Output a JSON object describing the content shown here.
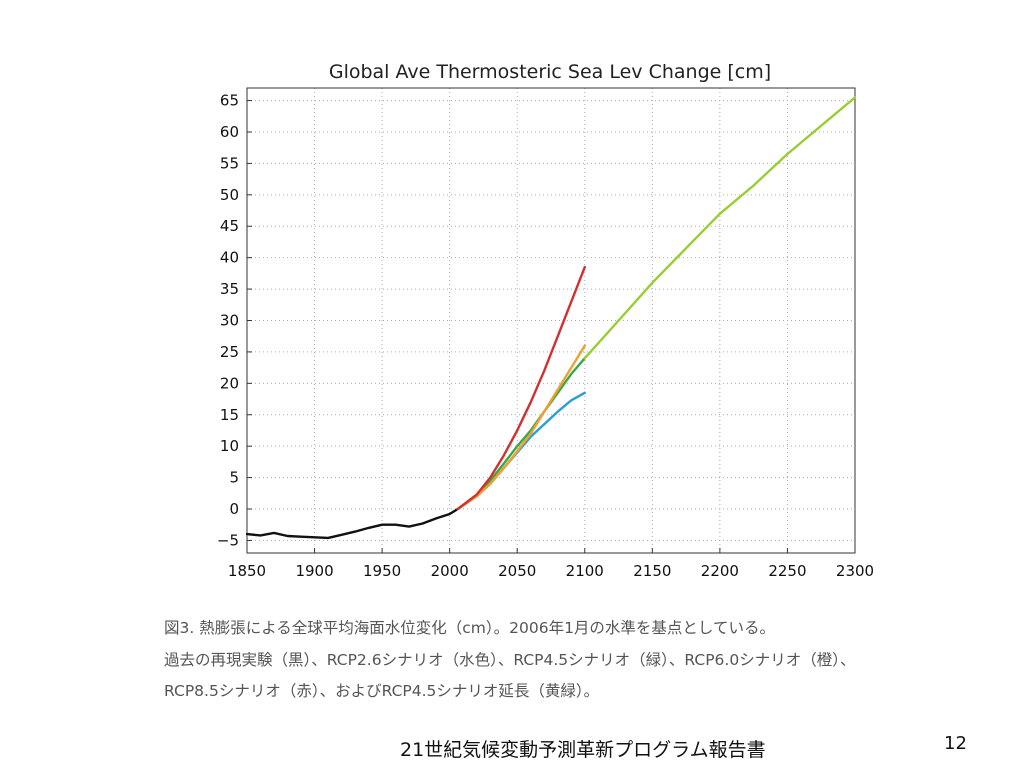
{
  "chart_data": {
    "type": "line",
    "title": "Global Ave Thermosteric Sea Lev Change [cm]",
    "xlabel": "",
    "ylabel": "",
    "xlim": [
      1850,
      2300
    ],
    "ylim": [
      -7,
      67
    ],
    "x_ticks": [
      1850,
      1900,
      1950,
      2000,
      2050,
      2100,
      2150,
      2200,
      2250,
      2300
    ],
    "y_ticks": [
      -5,
      0,
      5,
      10,
      15,
      20,
      25,
      30,
      35,
      40,
      45,
      50,
      55,
      60,
      65
    ],
    "grid": true,
    "series": [
      {
        "color": "#111111",
        "x": [
          1850,
          1860,
          1870,
          1880,
          1890,
          1900,
          1910,
          1920,
          1930,
          1940,
          1950,
          1960,
          1970,
          1980,
          1990,
          2000,
          2006
        ],
        "y": [
          -4,
          -4.2,
          -3.8,
          -4.3,
          -4.4,
          -4.5,
          -4.6,
          -4.1,
          -3.6,
          -3.0,
          -2.5,
          -2.5,
          -2.8,
          -2.3,
          -1.5,
          -0.8,
          0
        ]
      },
      {
        "color": "#2a9fd6",
        "x": [
          2006,
          2020,
          2030,
          2040,
          2050,
          2060,
          2070,
          2080,
          2090,
          2100
        ],
        "y": [
          0,
          2.0,
          4.0,
          6.5,
          9.0,
          11.5,
          13.5,
          15.5,
          17.3,
          18.5
        ]
      },
      {
        "color": "#3aa84a",
        "x": [
          2006,
          2020,
          2030,
          2040,
          2050,
          2060,
          2070,
          2080,
          2090,
          2100
        ],
        "y": [
          0,
          2.2,
          4.5,
          7.2,
          10.0,
          12.5,
          15.5,
          18.5,
          21.5,
          24.0
        ]
      },
      {
        "color": "#f0a030",
        "x": [
          2006,
          2020,
          2030,
          2040,
          2050,
          2060,
          2070,
          2080,
          2090,
          2100
        ],
        "y": [
          0,
          2.0,
          4.0,
          6.5,
          9.2,
          12.0,
          15.5,
          19.0,
          22.5,
          26.0
        ]
      },
      {
        "color": "#d23030",
        "x": [
          2006,
          2020,
          2030,
          2040,
          2050,
          2060,
          2070,
          2080,
          2090,
          2100
        ],
        "y": [
          0,
          2.3,
          5.0,
          8.5,
          12.5,
          17.0,
          22.0,
          27.5,
          33.0,
          38.5
        ]
      },
      {
        "color": "#9acd32",
        "x": [
          2100,
          2125,
          2150,
          2175,
          2200,
          2225,
          2250,
          2275,
          2300
        ],
        "y": [
          24.0,
          30.0,
          36.0,
          41.5,
          47.0,
          51.5,
          56.5,
          61.0,
          65.5
        ]
      }
    ]
  },
  "caption": {
    "line1": "図3. 熱膨張による全球平均海面水位変化（cm）。2006年1月の水準を基点としている。",
    "line2": "過去の再現実験（黒）、RCP2.6シナリオ（水色）、RCP4.5シナリオ（緑）、RCP6.0シナリオ（橙）、",
    "line3": "RCP8.5シナリオ（赤）、およびRCP4.5シナリオ延長（黄緑）。"
  },
  "footer": {
    "title": "21世紀気候変動予測革新プログラム報告書",
    "page_number": "12"
  }
}
